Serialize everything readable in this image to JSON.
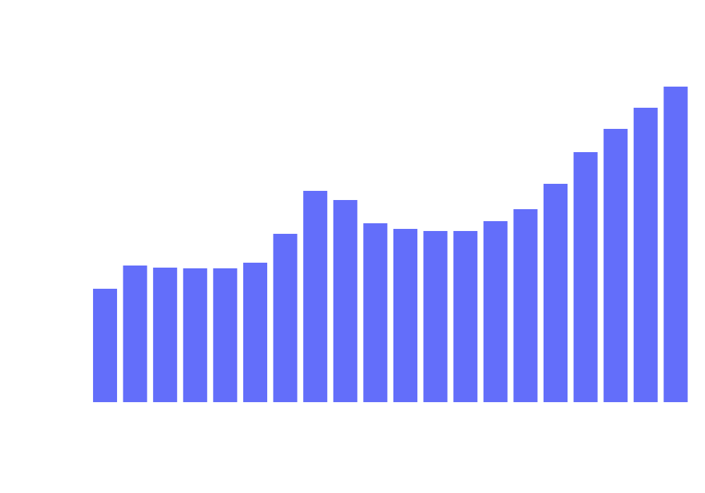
{
  "chart_data": {
    "type": "bar",
    "categories": [
      null,
      null,
      null,
      null,
      null,
      null,
      null,
      null,
      null,
      null,
      null,
      null,
      null,
      null,
      null,
      null,
      null,
      null,
      null,
      null
    ],
    "values": [
      161,
      194,
      191,
      190,
      190,
      198,
      239,
      300,
      287,
      254,
      246,
      243,
      243,
      257,
      274,
      310,
      355,
      388,
      418,
      448
    ],
    "color": "#636efa",
    "ylim": [
      0,
      500
    ]
  }
}
